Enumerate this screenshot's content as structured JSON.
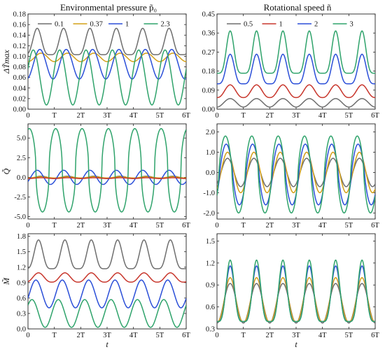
{
  "column_titles": {
    "left": "Environmental pressure p̃₀",
    "right": "Rotational speed ñ"
  },
  "colors": {
    "left": [
      "#6e6e6e",
      "#d4a017",
      "#2b4fd8",
      "#2fa36b"
    ],
    "right": [
      "#6e6e6e",
      "#c8372d",
      "#2b4fd8",
      "#2fa36b"
    ],
    "q_left": [
      "#6e6e6e",
      "#d4a017",
      "#2b4fd8",
      "#2fa36b",
      "#c8372d"
    ],
    "m_left": [
      "#6e6e6e",
      "#c8372d",
      "#2b4fd8",
      "#2fa36b"
    ],
    "q_right": [
      "#6e6e6e",
      "#d4a017",
      "#2b4fd8",
      "#2fa36b"
    ],
    "m_right": [
      "#6e6e6e",
      "#d4a017",
      "#2b4fd8",
      "#2fa36b"
    ]
  },
  "chart_data": [
    {
      "id": "dT-left",
      "type": "line",
      "ylabel": "ΔT̃max",
      "xlabel": "",
      "xticks": [
        "0",
        "T",
        "2T",
        "3T",
        "4T",
        "5T",
        "6T"
      ],
      "yticks": [
        "0.00",
        "0.02",
        "0.04",
        "0.06",
        "0.08",
        "0.10",
        "0.12",
        "0.14",
        "0.16",
        "0.18"
      ],
      "ylim": [
        0,
        0.18
      ],
      "legend": "top",
      "series": [
        {
          "name": "0.1",
          "mean": 0.128,
          "amp": 0.025,
          "sharp": 2.0,
          "phase": 0.15
        },
        {
          "name": "0.37",
          "mean": 0.098,
          "amp": 0.008,
          "sharp": 1.0,
          "phase": 0.0
        },
        {
          "name": "1",
          "mean": 0.085,
          "amp": 0.028,
          "sharp": 1.0,
          "phase": 0.05
        },
        {
          "name": "2.3",
          "mean": 0.06,
          "amp": 0.052,
          "sharp": 1.0,
          "phase": 0.3
        }
      ]
    },
    {
      "id": "dT-right",
      "type": "line",
      "ylabel": "",
      "xlabel": "",
      "xticks": [
        "0",
        "T",
        "2T",
        "3T",
        "4T",
        "5T",
        "6T"
      ],
      "yticks": [
        "0.00",
        "0.09",
        "0.18",
        "0.27",
        "0.36",
        "0.45"
      ],
      "ylim": [
        0,
        0.45
      ],
      "legend": "top",
      "series": [
        {
          "name": "0.5",
          "mean": 0.03,
          "amp": 0.02,
          "sharp": 1.0,
          "phase": 0.0
        },
        {
          "name": "1",
          "mean": 0.085,
          "amp": 0.03,
          "sharp": 1.3,
          "phase": 0.0
        },
        {
          "name": "2",
          "mean": 0.19,
          "amp": 0.07,
          "sharp": 2.2,
          "phase": 0.0
        },
        {
          "name": "3",
          "mean": 0.27,
          "amp": 0.1,
          "sharp": 2.5,
          "phase": 0.0
        }
      ]
    },
    {
      "id": "Q-left",
      "type": "line",
      "ylabel": "Q̃",
      "xlabel": "",
      "xticks": [
        "0",
        "T",
        "2T",
        "3T",
        "4T",
        "5T",
        "6T"
      ],
      "yticks": [
        "-5.0",
        "-2.5",
        "0.0",
        "2.5",
        "5.0"
      ],
      "ylim": [
        -5.3,
        6.8
      ],
      "series": [
        {
          "name": "0.1",
          "mean": 0.0,
          "amp": 0.15,
          "sharp": 1.0,
          "phase": 0.0
        },
        {
          "name": "0.37",
          "mean": 0.0,
          "amp": 0.08,
          "sharp": 1.0,
          "phase": 0.0
        },
        {
          "name": "1",
          "mean": 0.0,
          "amp": 0.9,
          "sharp": 1.0,
          "phase": 0.15
        },
        {
          "name": "2.3",
          "mean": 0.9,
          "amp": 5.3,
          "sharp": 0.5,
          "phase": 0.45
        },
        {
          "name": "",
          "mean": -0.1,
          "amp": 0.05,
          "sharp": 1.0,
          "phase": 0.0
        }
      ]
    },
    {
      "id": "Q-right",
      "type": "line",
      "ylabel": "",
      "xlabel": "",
      "xticks": [
        "0",
        "T",
        "2T",
        "3T",
        "4T",
        "5T",
        "6T"
      ],
      "yticks": [
        "-2.0",
        "-1.0",
        "0.0",
        "1.0",
        "2.0"
      ],
      "ylim": [
        -2.3,
        2.4
      ],
      "series": [
        {
          "name": "",
          "mean": 0.0,
          "amp": 0.7,
          "sharp": 1.0,
          "phase": 0.1
        },
        {
          "name": "",
          "mean": 0.0,
          "amp": 1.0,
          "sharp": 1.0,
          "phase": 0.1
        },
        {
          "name": "",
          "mean": -0.1,
          "amp": 1.5,
          "sharp": 0.8,
          "phase": 0.15
        },
        {
          "name": "",
          "mean": -0.1,
          "amp": 1.9,
          "sharp": 0.7,
          "phase": 0.18
        }
      ]
    },
    {
      "id": "M-left",
      "type": "line",
      "ylabel": "M̃",
      "xlabel": "t",
      "xticks": [
        "0",
        "T",
        "2T",
        "3T",
        "4T",
        "5T",
        "6T"
      ],
      "yticks": [
        "0.0",
        "0.3",
        "0.6",
        "0.9",
        "1.2",
        "1.5",
        "1.8"
      ],
      "ylim": [
        0,
        1.85
      ],
      "series": [
        {
          "name": "",
          "mean": 1.45,
          "amp": 0.28,
          "sharp": 2.0,
          "phase": 0.1
        },
        {
          "name": "",
          "mean": 1.0,
          "amp": 0.09,
          "sharp": 1.3,
          "phase": 0.1
        },
        {
          "name": "",
          "mean": 0.68,
          "amp": 0.27,
          "sharp": 1.0,
          "phase": 0.2
        },
        {
          "name": "",
          "mean": 0.3,
          "amp": 0.27,
          "sharp": 1.0,
          "phase": 0.35
        }
      ]
    },
    {
      "id": "M-right",
      "type": "line",
      "ylabel": "",
      "xlabel": "t",
      "xticks": [
        "0",
        "T",
        "2T",
        "3T",
        "4T",
        "5T",
        "6T"
      ],
      "yticks": [
        "0.3",
        "0.6",
        "0.9",
        "1.2",
        "1.5"
      ],
      "ylim": [
        0.3,
        1.6
      ],
      "series": [
        {
          "name": "",
          "mean": 0.65,
          "amp": 0.27,
          "sharp": 1.0,
          "phase": 0.0
        },
        {
          "name": "",
          "mean": 0.7,
          "amp": 0.3,
          "sharp": 1.3,
          "phase": 0.0
        },
        {
          "name": "",
          "mean": 0.78,
          "amp": 0.38,
          "sharp": 2.0,
          "phase": 0.0
        },
        {
          "name": "",
          "mean": 0.82,
          "amp": 0.42,
          "sharp": 2.2,
          "phase": 0.0
        }
      ]
    }
  ]
}
